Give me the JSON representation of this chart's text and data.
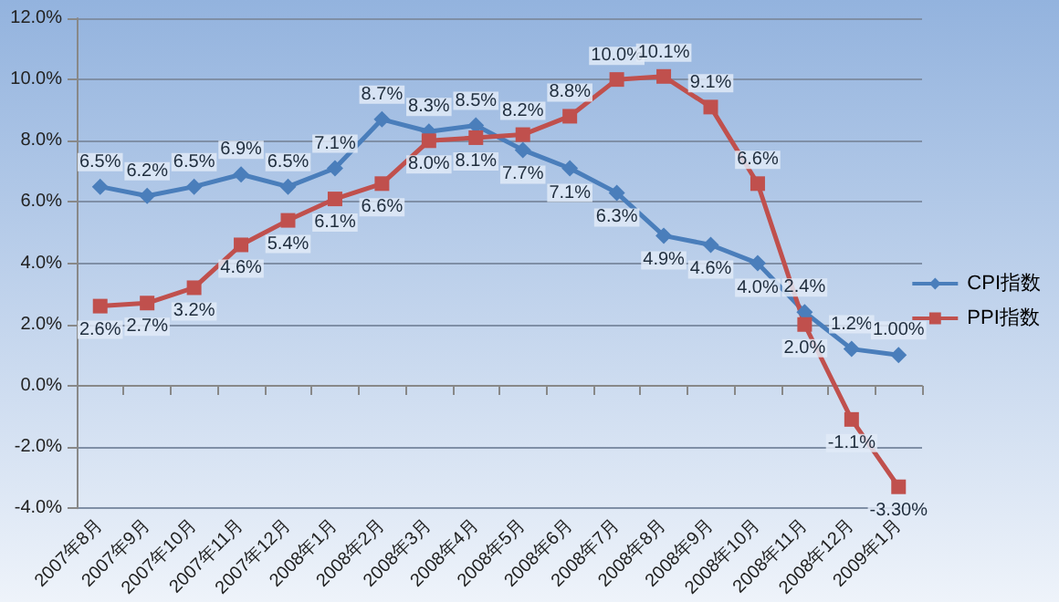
{
  "chart_data": {
    "type": "line",
    "categories": [
      "2007年8月",
      "2007年9月",
      "2007年10月",
      "2007年11月",
      "2007年12月",
      "2008年1月",
      "2008年2月",
      "2008年3月",
      "2008年4月",
      "2008年5月",
      "2008年6月",
      "2008年7月",
      "2008年8月",
      "2008年9月",
      "2008年10月",
      "2008年11月",
      "2008年12月",
      "2009年1月"
    ],
    "series": [
      {
        "name": "CPI指数",
        "color": "#4a7ebb",
        "marker": "diamond",
        "values": [
          6.5,
          6.2,
          6.5,
          6.9,
          6.5,
          7.1,
          8.7,
          8.3,
          8.5,
          7.7,
          7.1,
          6.3,
          4.9,
          4.6,
          4.0,
          2.4,
          1.2,
          1.0
        ],
        "value_labels": [
          "6.5%",
          "6.2%",
          "6.5%",
          "6.9%",
          "6.5%",
          "7.1%",
          "8.7%",
          "8.3%",
          "8.5%",
          "7.7%",
          "7.1%",
          "6.3%",
          "4.9%",
          "4.6%",
          "4.0%",
          "2.4%",
          "1.2%",
          "1.00%"
        ]
      },
      {
        "name": "PPI指数",
        "color": "#c0504d",
        "marker": "square",
        "values": [
          2.6,
          2.7,
          3.2,
          4.6,
          5.4,
          6.1,
          6.6,
          8.0,
          8.1,
          8.2,
          8.8,
          10.0,
          10.1,
          9.1,
          6.6,
          2.0,
          -1.1,
          -3.3
        ],
        "value_labels": [
          "2.6%",
          "2.7%",
          "3.2%",
          "4.6%",
          "5.4%",
          "6.1%",
          "6.6%",
          "8.0%",
          "8.1%",
          "8.2%",
          "8.8%",
          "10.0%",
          "10.1%",
          "9.1%",
          "6.6%",
          "2.0%",
          "-1.1%",
          "-3.30%"
        ]
      }
    ],
    "ylim": [
      -4,
      12
    ],
    "yticks": [
      {
        "value": -4,
        "label": "-4.0%"
      },
      {
        "value": -2,
        "label": "-2.0%"
      },
      {
        "value": 0,
        "label": "0.0%"
      },
      {
        "value": 2,
        "label": "2.0%"
      },
      {
        "value": 4,
        "label": "4.0%"
      },
      {
        "value": 6,
        "label": "6.0%"
      },
      {
        "value": 8,
        "label": "8.0%"
      },
      {
        "value": 10,
        "label": "10.0%"
      },
      {
        "value": 12,
        "label": "12.0%"
      }
    ],
    "grid": "y",
    "legend": "right",
    "line_style": "solid"
  }
}
